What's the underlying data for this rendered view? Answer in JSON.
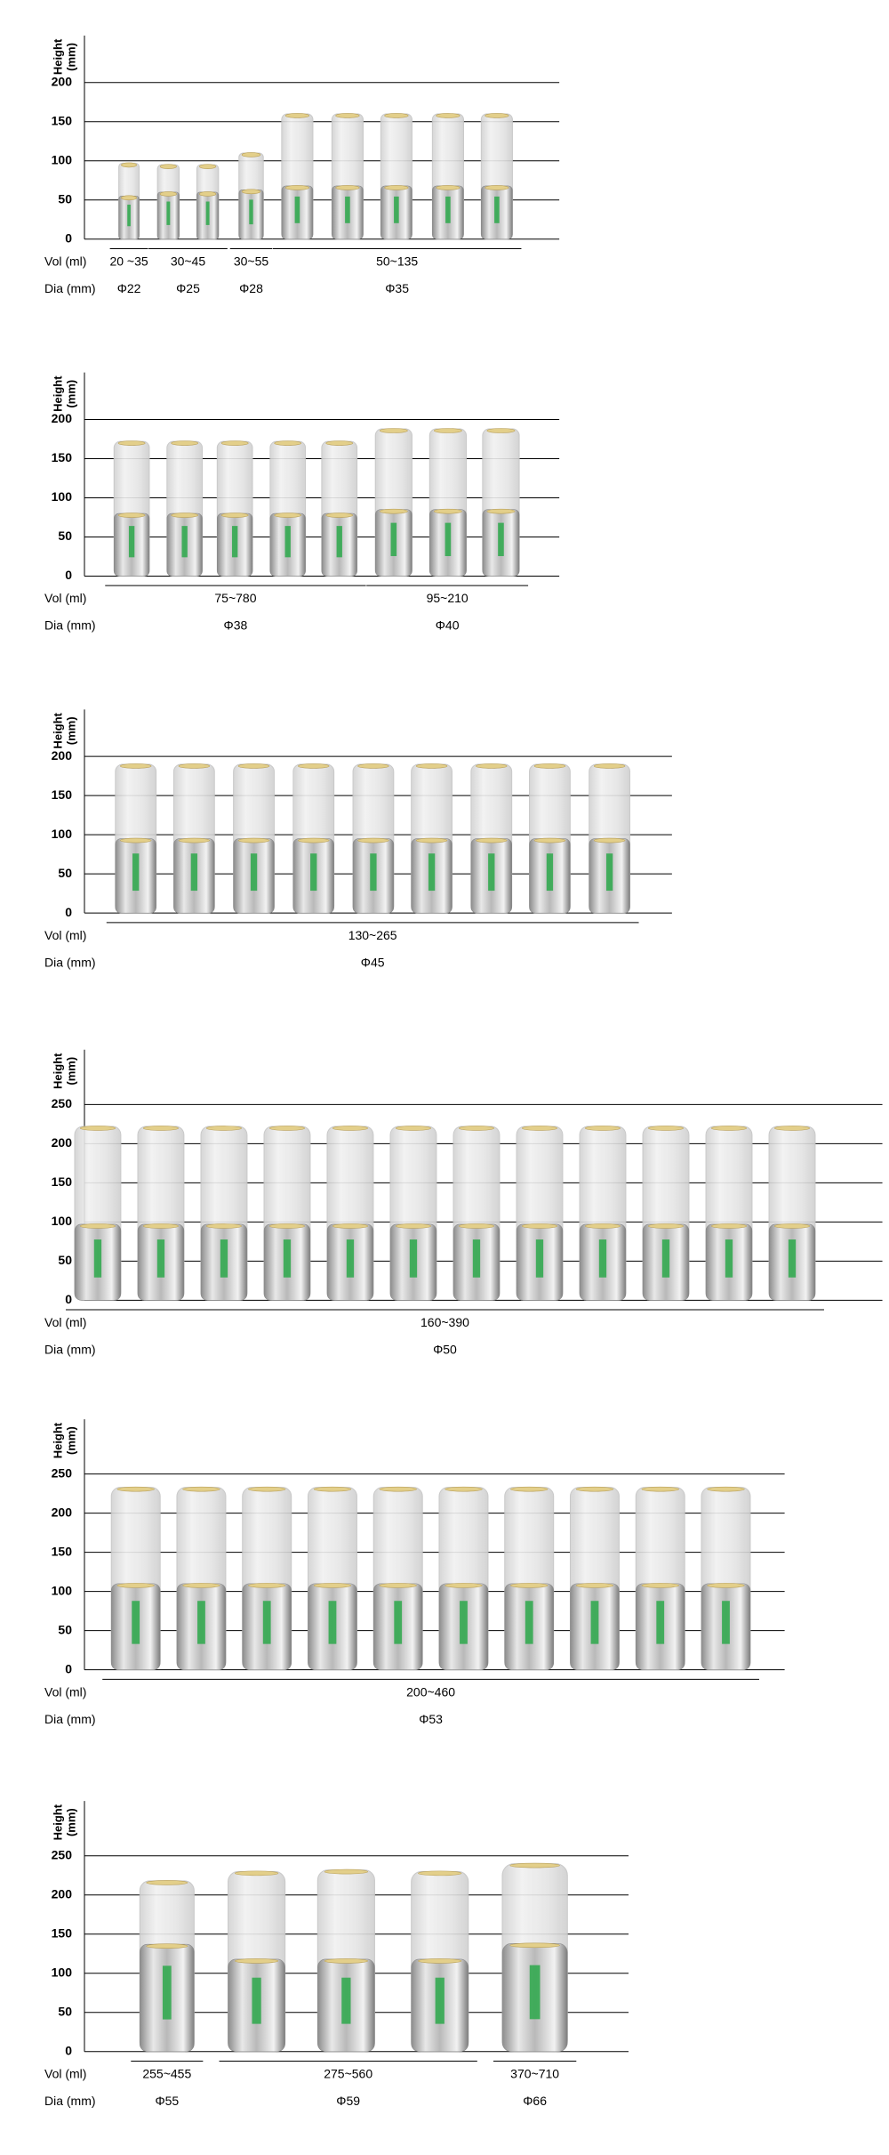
{
  "chart_data": [
    {
      "type": "bar",
      "ylabel": [
        "Height",
        "(mm)"
      ],
      "ylim": [
        0,
        260
      ],
      "yticks": [
        0,
        50,
        100,
        150,
        200
      ],
      "vol_label": "Vol  (ml)",
      "dia_label": "Dia  (mm)",
      "groups": [
        {
          "vol": "20 ~35",
          "dia": "Φ22",
          "cans": [
            {
              "height": 97,
              "body_height": 55
            }
          ]
        },
        {
          "vol": "30~45",
          "dia": "Φ25",
          "cans": [
            {
              "height": 95,
              "body_height": 60
            },
            {
              "height": 95,
              "body_height": 60
            }
          ]
        },
        {
          "vol": "30~55",
          "dia": "Φ28",
          "cans": [
            {
              "height": 110,
              "body_height": 63
            }
          ]
        },
        {
          "vol": "50~135",
          "dia": "Φ35",
          "cans": [
            {
              "height": 160,
              "body_height": 68
            },
            {
              "height": 160,
              "body_height": 68
            },
            {
              "height": 160,
              "body_height": 68
            },
            {
              "height": 160,
              "body_height": 68
            },
            {
              "height": 160,
              "body_height": 68
            }
          ]
        }
      ]
    },
    {
      "type": "bar",
      "ylabel": [
        "Height",
        "(mm)"
      ],
      "ylim": [
        0,
        260
      ],
      "yticks": [
        0,
        50,
        100,
        150,
        200
      ],
      "vol_label": "Vol  (ml)",
      "dia_label": "Dia  (mm)",
      "groups": [
        {
          "vol": "75~780",
          "dia": "Φ38",
          "cans": [
            {
              "height": 172,
              "body_height": 80
            },
            {
              "height": 172,
              "body_height": 80
            },
            {
              "height": 172,
              "body_height": 80
            },
            {
              "height": 172,
              "body_height": 80
            },
            {
              "height": 172,
              "body_height": 80
            }
          ]
        },
        {
          "vol": "95~210",
          "dia": "Φ40",
          "cans": [
            {
              "height": 188,
              "body_height": 85
            },
            {
              "height": 188,
              "body_height": 85
            },
            {
              "height": 188,
              "body_height": 85
            }
          ]
        }
      ]
    },
    {
      "type": "bar",
      "ylabel": [
        "Height",
        "(mm)"
      ],
      "ylim": [
        0,
        260
      ],
      "yticks": [
        0,
        50,
        100,
        150,
        200
      ],
      "vol_label": "Vol  (ml)",
      "dia_label": "Dia  (mm)",
      "groups": [
        {
          "vol": "130~265",
          "dia": "Φ45",
          "cans": [
            {
              "height": 190,
              "body_height": 95
            },
            {
              "height": 190,
              "body_height": 95
            },
            {
              "height": 190,
              "body_height": 95
            },
            {
              "height": 190,
              "body_height": 95
            },
            {
              "height": 190,
              "body_height": 95
            },
            {
              "height": 190,
              "body_height": 95
            },
            {
              "height": 190,
              "body_height": 95
            },
            {
              "height": 190,
              "body_height": 95
            },
            {
              "height": 190,
              "body_height": 95
            }
          ]
        }
      ]
    },
    {
      "type": "bar",
      "ylabel": [
        "Height",
        "(mm)"
      ],
      "ylim": [
        0,
        320
      ],
      "yticks": [
        0,
        50,
        100,
        150,
        200,
        250
      ],
      "vol_label": "Vol  (ml)",
      "dia_label": "Dia  (mm)",
      "groups": [
        {
          "vol": "160~390",
          "dia": "Φ50",
          "cans": [
            {
              "height": 222,
              "body_height": 97
            },
            {
              "height": 222,
              "body_height": 97
            },
            {
              "height": 222,
              "body_height": 97
            },
            {
              "height": 222,
              "body_height": 97
            },
            {
              "height": 222,
              "body_height": 97
            },
            {
              "height": 222,
              "body_height": 97
            },
            {
              "height": 222,
              "body_height": 97
            },
            {
              "height": 222,
              "body_height": 97
            },
            {
              "height": 222,
              "body_height": 97
            },
            {
              "height": 222,
              "body_height": 97
            },
            {
              "height": 222,
              "body_height": 97
            },
            {
              "height": 222,
              "body_height": 97
            }
          ]
        }
      ]
    },
    {
      "type": "bar",
      "ylabel": [
        "Height",
        "(mm)"
      ],
      "ylim": [
        0,
        320
      ],
      "yticks": [
        0,
        50,
        100,
        150,
        200,
        250
      ],
      "vol_label": "Vol  (ml)",
      "dia_label": "Dia  (mm)",
      "groups": [
        {
          "vol": "200~460",
          "dia": "Φ53",
          "cans": [
            {
              "height": 233,
              "body_height": 110
            },
            {
              "height": 233,
              "body_height": 110
            },
            {
              "height": 233,
              "body_height": 110
            },
            {
              "height": 233,
              "body_height": 110
            },
            {
              "height": 233,
              "body_height": 110
            },
            {
              "height": 233,
              "body_height": 110
            },
            {
              "height": 233,
              "body_height": 110
            },
            {
              "height": 233,
              "body_height": 110
            },
            {
              "height": 233,
              "body_height": 110
            },
            {
              "height": 233,
              "body_height": 110
            }
          ]
        }
      ]
    },
    {
      "type": "bar",
      "ylabel": [
        "Height",
        "(mm)"
      ],
      "ylim": [
        0,
        320
      ],
      "yticks": [
        0,
        50,
        100,
        150,
        200,
        250
      ],
      "vol_label": "Vol  (ml)",
      "dia_label": "Dia  (mm)",
      "groups": [
        {
          "vol": "255~455",
          "dia": "Φ55",
          "cans": [
            {
              "height": 218,
              "body_height": 137
            }
          ]
        },
        {
          "vol": "275~560",
          "dia": "Φ59",
          "cans": [
            {
              "height": 230,
              "body_height": 118
            },
            {
              "height": 232,
              "body_height": 118
            },
            {
              "height": 230,
              "body_height": 118
            }
          ]
        },
        {
          "vol": "370~710",
          "dia": "Φ66",
          "cans": [
            {
              "height": 240,
              "body_height": 138
            }
          ]
        }
      ]
    }
  ]
}
